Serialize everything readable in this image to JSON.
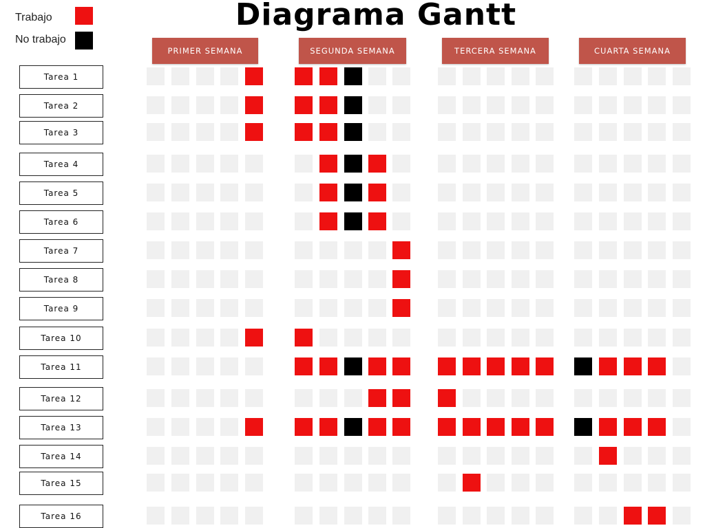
{
  "title": "Diagrama Gantt",
  "legend": [
    {
      "label": "Trabajo",
      "state": "work"
    },
    {
      "label": "No trabajo",
      "state": "nowork"
    }
  ],
  "colors": {
    "work": "#ee1111",
    "nowork": "#000000",
    "empty": "#f0f0f0",
    "header_bg": "#c0554a"
  },
  "weeks": [
    {
      "label": "PRIMER SEMANA"
    },
    {
      "label": "SEGUNDA SEMANA"
    },
    {
      "label": "TERCERA SEMANA"
    },
    {
      "label": "CUARTA SEMANA"
    }
  ],
  "tasks": [
    {
      "label": "Tarea 1",
      "cells": [
        "0000W",
        "WWN00",
        "00000",
        "00000"
      ]
    },
    {
      "label": "Tarea 2",
      "cells": [
        "0000W",
        "WWN00",
        "00000",
        "00000"
      ]
    },
    {
      "label": "Tarea 3",
      "cells": [
        "0000W",
        "WWN00",
        "00000",
        "00000"
      ]
    },
    {
      "label": "Tarea 4",
      "cells": [
        "00000",
        "0WNW0",
        "00000",
        "00000"
      ]
    },
    {
      "label": "Tarea 5",
      "cells": [
        "00000",
        "0WNW0",
        "00000",
        "00000"
      ]
    },
    {
      "label": "Tarea 6",
      "cells": [
        "00000",
        "0WNW0",
        "00000",
        "00000"
      ]
    },
    {
      "label": "Tarea 7",
      "cells": [
        "00000",
        "0000W",
        "00000",
        "00000"
      ]
    },
    {
      "label": "Tarea 8",
      "cells": [
        "00000",
        "0000W",
        "00000",
        "00000"
      ]
    },
    {
      "label": "Tarea 9",
      "cells": [
        "00000",
        "0000W",
        "00000",
        "00000"
      ]
    },
    {
      "label": "Tarea 10",
      "cells": [
        "0000W",
        "W0000",
        "00000",
        "00000"
      ]
    },
    {
      "label": "Tarea 11",
      "cells": [
        "00000",
        "WWNWW",
        "WWWWW",
        "NWWW0"
      ]
    },
    {
      "label": "Tarea 12",
      "cells": [
        "00000",
        "000WW",
        "W0000",
        "00000"
      ]
    },
    {
      "label": "Tarea 13",
      "cells": [
        "0000W",
        "WWNWW",
        "WWWWW",
        "NWWW0"
      ]
    },
    {
      "label": "Tarea 14",
      "cells": [
        "00000",
        "00000",
        "00000",
        "0W000"
      ]
    },
    {
      "label": "Tarea 15",
      "cells": [
        "00000",
        "00000",
        "0W000",
        "00000"
      ]
    },
    {
      "label": "Tarea 16",
      "cells": [
        "00000",
        "00000",
        "00000",
        "00WW0"
      ]
    }
  ]
}
